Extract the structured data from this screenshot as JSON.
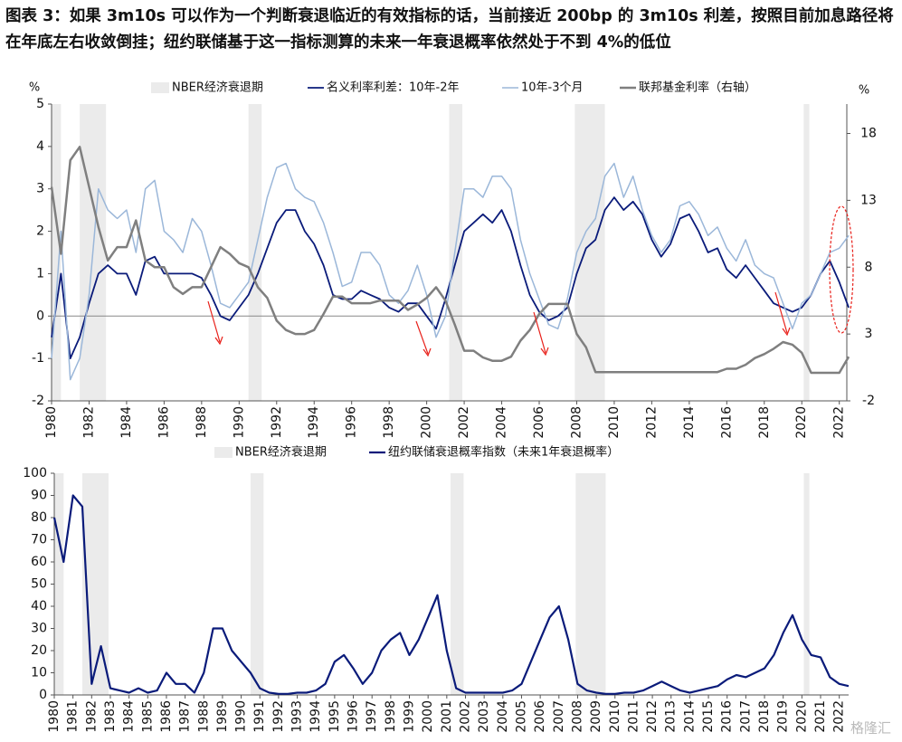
{
  "header": {
    "title": "图表 3：如果 3m10s 可以作为一个判断衰退临近的有效指标的话，当前接近 200bp 的 3m10s 利差，按照目前加息路径将在年底左右收敛倒挂；纽约联储基于这一指标测算的未来一年衰退概率依然处于不到 4%的低位"
  },
  "watermark": "格隆汇",
  "chart_data": [
    {
      "type": "line",
      "recession_label": "NBER经济衰退期",
      "recession_color": "#ebebeb",
      "recessions": [
        [
          1980.0,
          1980.5
        ],
        [
          1981.5,
          1982.9
        ],
        [
          1990.5,
          1991.2
        ],
        [
          2001.2,
          2001.9
        ],
        [
          2007.9,
          2009.5
        ],
        [
          2020.1,
          2020.4
        ]
      ],
      "y_unit": "%",
      "y2_unit": "%",
      "xlim": [
        1980,
        2022.4
      ],
      "xticks": [
        1980,
        1982,
        1984,
        1986,
        1988,
        1990,
        1992,
        1994,
        1996,
        1998,
        2000,
        2002,
        2004,
        2006,
        2008,
        2010,
        2012,
        2014,
        2016,
        2018,
        2020,
        2022
      ],
      "ylim": [
        -2,
        5
      ],
      "yticks": [
        -2,
        -1,
        0,
        1,
        2,
        3,
        4,
        5
      ],
      "y2lim": [
        -2,
        20.2
      ],
      "y2ticks": [
        -2,
        3,
        8,
        13,
        18
      ],
      "x": [
        1980,
        1980.5,
        1981,
        1981.5,
        1982,
        1982.5,
        1983,
        1983.5,
        1984,
        1984.5,
        1985,
        1985.5,
        1986,
        1986.5,
        1987,
        1987.5,
        1988,
        1988.5,
        1989,
        1989.5,
        1990,
        1990.5,
        1991,
        1991.5,
        1992,
        1992.5,
        1993,
        1993.5,
        1994,
        1994.5,
        1995,
        1995.5,
        1996,
        1996.5,
        1997,
        1997.5,
        1998,
        1998.5,
        1999,
        1999.5,
        2000,
        2000.5,
        2001,
        2001.5,
        2002,
        2002.5,
        2003,
        2003.5,
        2004,
        2004.5,
        2005,
        2005.5,
        2006,
        2006.5,
        2007,
        2007.5,
        2008,
        2008.5,
        2009,
        2009.5,
        2010,
        2010.5,
        2011,
        2011.5,
        2012,
        2012.5,
        2013,
        2013.5,
        2014,
        2014.5,
        2015,
        2015.5,
        2016,
        2016.5,
        2017,
        2017.5,
        2018,
        2018.5,
        2019,
        2019.5,
        2020,
        2020.5,
        2021,
        2021.5,
        2022,
        2022.5
      ],
      "series": [
        {
          "name": "名义利率利差：10年-2年",
          "color": "#0a1b7a",
          "width": 1.8,
          "values": [
            -0.5,
            1.0,
            -1.0,
            -0.5,
            0.3,
            1.0,
            1.2,
            1.0,
            1.0,
            0.5,
            1.3,
            1.4,
            1.0,
            1.0,
            1.0,
            1.0,
            0.9,
            0.5,
            0.0,
            -0.1,
            0.2,
            0.5,
            1.0,
            1.6,
            2.2,
            2.5,
            2.5,
            2.0,
            1.7,
            1.2,
            0.5,
            0.4,
            0.4,
            0.6,
            0.5,
            0.4,
            0.2,
            0.1,
            0.3,
            0.3,
            0.0,
            -0.3,
            0.4,
            1.2,
            2.0,
            2.2,
            2.4,
            2.2,
            2.5,
            2.0,
            1.2,
            0.5,
            0.1,
            -0.1,
            0.0,
            0.2,
            1.0,
            1.6,
            1.8,
            2.5,
            2.8,
            2.5,
            2.7,
            2.4,
            1.8,
            1.4,
            1.7,
            2.3,
            2.4,
            2.0,
            1.5,
            1.6,
            1.1,
            0.9,
            1.2,
            0.9,
            0.6,
            0.3,
            0.2,
            0.1,
            0.2,
            0.5,
            1.0,
            1.3,
            0.8,
            0.2
          ]
        },
        {
          "name": "10年-3个月",
          "color": "#9bb7d9",
          "width": 1.5,
          "values": [
            -1.0,
            2.0,
            -1.5,
            -1.0,
            0.5,
            3.0,
            2.5,
            2.3,
            2.5,
            1.5,
            3.0,
            3.2,
            2.0,
            1.8,
            1.5,
            2.3,
            2.0,
            1.2,
            0.3,
            0.2,
            0.5,
            0.8,
            1.8,
            2.8,
            3.5,
            3.6,
            3.0,
            2.8,
            2.7,
            2.2,
            1.5,
            0.7,
            0.8,
            1.5,
            1.5,
            1.2,
            0.5,
            0.3,
            0.6,
            1.2,
            0.5,
            -0.5,
            0.0,
            1.5,
            3.0,
            3.0,
            2.8,
            3.3,
            3.3,
            3.0,
            1.8,
            1.0,
            0.4,
            -0.2,
            -0.3,
            0.4,
            1.5,
            2.0,
            2.3,
            3.3,
            3.6,
            2.8,
            3.3,
            2.5,
            1.9,
            1.5,
            1.8,
            2.6,
            2.7,
            2.4,
            1.9,
            2.1,
            1.6,
            1.3,
            1.8,
            1.2,
            1.0,
            0.9,
            0.3,
            -0.3,
            0.3,
            0.5,
            1.0,
            1.5,
            1.6,
            1.9
          ]
        },
        {
          "name": "联邦基金利率（右轴）",
          "color": "#7f7f7f",
          "width": 2.5,
          "axis": "y2",
          "values": [
            14,
            9,
            16,
            17,
            14,
            11,
            8.5,
            9.5,
            9.5,
            11.5,
            8.5,
            8,
            8,
            6.5,
            6,
            6.5,
            6.5,
            8,
            9.5,
            9,
            8.3,
            8,
            6.5,
            5.7,
            4,
            3.3,
            3,
            3,
            3.3,
            4.5,
            5.8,
            5.8,
            5.3,
            5.3,
            5.3,
            5.5,
            5.5,
            5.5,
            4.8,
            5.2,
            5.7,
            6.5,
            5.5,
            3.7,
            1.75,
            1.75,
            1.25,
            1,
            1,
            1.3,
            2.5,
            3.3,
            4.5,
            5.25,
            5.25,
            5.25,
            3,
            2,
            0.15,
            0.15,
            0.15,
            0.15,
            0.15,
            0.15,
            0.15,
            0.15,
            0.15,
            0.15,
            0.15,
            0.15,
            0.15,
            0.15,
            0.4,
            0.4,
            0.7,
            1.2,
            1.5,
            1.9,
            2.4,
            2.2,
            1.6,
            0.1,
            0.1,
            0.1,
            0.1,
            1.3
          ]
        }
      ]
    },
    {
      "type": "line",
      "recession_label": "NBER经济衰退期",
      "recession_color": "#ebebeb",
      "recessions": [
        [
          1980.0,
          1980.5
        ],
        [
          1981.5,
          1982.9
        ],
        [
          1990.5,
          1991.2
        ],
        [
          2001.2,
          2001.9
        ],
        [
          2007.9,
          2009.5
        ],
        [
          2020.1,
          2020.4
        ]
      ],
      "xlim": [
        1980,
        2022.5
      ],
      "xticks": [
        1980,
        1981,
        1982,
        1983,
        1984,
        1985,
        1986,
        1987,
        1988,
        1989,
        1990,
        1991,
        1992,
        1993,
        1994,
        1995,
        1996,
        1997,
        1998,
        1999,
        2000,
        2001,
        2002,
        2003,
        2004,
        2005,
        2006,
        2007,
        2008,
        2009,
        2010,
        2011,
        2012,
        2013,
        2014,
        2015,
        2016,
        2017,
        2018,
        2019,
        2020,
        2021,
        2022
      ],
      "ylim": [
        0,
        100
      ],
      "yticks": [
        0,
        10,
        20,
        30,
        40,
        50,
        60,
        70,
        80,
        90,
        100
      ],
      "x": [
        1980,
        1980.5,
        1981,
        1981.5,
        1982,
        1982.5,
        1983,
        1983.5,
        1984,
        1984.5,
        1985,
        1985.5,
        1986,
        1986.5,
        1987,
        1987.5,
        1988,
        1988.5,
        1989,
        1989.5,
        1990,
        1990.5,
        1991,
        1991.5,
        1992,
        1992.5,
        1993,
        1993.5,
        1994,
        1994.5,
        1995,
        1995.5,
        1996,
        1996.5,
        1997,
        1997.5,
        1998,
        1998.5,
        1999,
        1999.5,
        2000,
        2000.5,
        2001,
        2001.5,
        2002,
        2002.5,
        2003,
        2003.5,
        2004,
        2004.5,
        2005,
        2005.5,
        2006,
        2006.5,
        2007,
        2007.5,
        2008,
        2008.5,
        2009,
        2009.5,
        2010,
        2010.5,
        2011,
        2011.5,
        2012,
        2012.5,
        2013,
        2013.5,
        2014,
        2014.5,
        2015,
        2015.5,
        2016,
        2016.5,
        2017,
        2017.5,
        2018,
        2018.5,
        2019,
        2019.5,
        2020,
        2020.5,
        2021,
        2021.5,
        2022,
        2022.5
      ],
      "series": [
        {
          "name": "纽约联储衰退概率指数（未来1年衰退概率）",
          "color": "#0a1b7a",
          "width": 2.2,
          "values": [
            80,
            60,
            90,
            85,
            5,
            22,
            3,
            2,
            1,
            3,
            1,
            2,
            10,
            5,
            5,
            1,
            10,
            30,
            30,
            20,
            15,
            10,
            3,
            1,
            0.5,
            0.5,
            1,
            1,
            2,
            5,
            15,
            18,
            12,
            5,
            10,
            20,
            25,
            28,
            18,
            25,
            35,
            45,
            20,
            3,
            1,
            1,
            1,
            1,
            1,
            2,
            5,
            15,
            25,
            35,
            40,
            25,
            5,
            2,
            1,
            0.5,
            0.5,
            1,
            1,
            2,
            4,
            6,
            4,
            2,
            1,
            2,
            3,
            4,
            7,
            9,
            8,
            10,
            12,
            18,
            28,
            36,
            25,
            18,
            17,
            8,
            5,
            4
          ]
        }
      ]
    }
  ]
}
